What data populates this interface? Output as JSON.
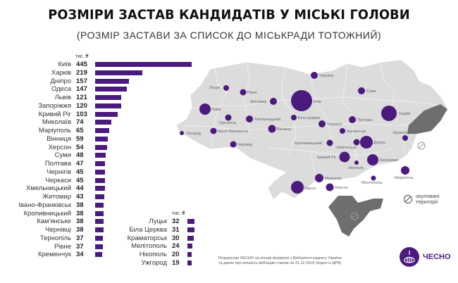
{
  "header": {
    "title": "РОЗМІРИ ЗАСТАВ КАНДИДАТІВ У МІСЬКІ ГОЛОВИ",
    "subtitle": "(РОЗМІР ЗАСТАВИ ЗА СПИСОК ДО МІСЬКРАДИ ТОТОЖНИЙ)"
  },
  "chart": {
    "unit_label": "тис. ₴",
    "bar_color": "#4b1a7e",
    "column1": [
      {
        "city": "Київ",
        "value": "445"
      },
      {
        "city": "Харків",
        "value": "219"
      },
      {
        "city": "Дніпро",
        "value": "157"
      },
      {
        "city": "Одеса",
        "value": "147"
      },
      {
        "city": "Львів",
        "value": "121"
      },
      {
        "city": "Запоріжжя",
        "value": "120"
      },
      {
        "city": "Кривий Ріг",
        "value": "103"
      },
      {
        "city": "Миколаїв",
        "value": "74"
      },
      {
        "city": "Маріуполь",
        "value": "65"
      },
      {
        "city": "Вінниця",
        "value": "59"
      },
      {
        "city": "Херсон",
        "value": "54"
      },
      {
        "city": "Суми",
        "value": "48"
      },
      {
        "city": "Полтава",
        "value": "47"
      },
      {
        "city": "Чернігів",
        "value": "45"
      },
      {
        "city": "Черкаси",
        "value": "45"
      },
      {
        "city": "Хмельницький",
        "value": "44"
      },
      {
        "city": "Житомир",
        "value": "43"
      },
      {
        "city": "Івано-Франківськ",
        "value": "38"
      },
      {
        "city": "Кропивницький",
        "value": "38"
      },
      {
        "city": "Кам'янське",
        "value": "38"
      },
      {
        "city": "Чернівці",
        "value": "38"
      },
      {
        "city": "Тернопіль",
        "value": "37"
      },
      {
        "city": "Рівне",
        "value": "37"
      },
      {
        "city": "Кременчук",
        "value": "34"
      }
    ],
    "column2": [
      {
        "city": "Луцьк",
        "value": "32"
      },
      {
        "city": "Біла Церква",
        "value": "31"
      },
      {
        "city": "Краматорськ",
        "value": "30"
      },
      {
        "city": "Мелітополь",
        "value": "24"
      },
      {
        "city": "Нікополь",
        "value": "20"
      },
      {
        "city": "Ужгород",
        "value": "19"
      }
    ]
  },
  "chart_data": {
    "type": "bar",
    "orientation": "horizontal",
    "title": "РОЗМІРИ ЗАСТАВ КАНДИДАТІВ У МІСЬКІ ГОЛОВИ",
    "subtitle": "(РОЗМІР ЗАСТАВИ ЗА СПИСОК ДО МІСЬКРАДИ ТОТОЖНИЙ)",
    "xlabel": "тис. ₴",
    "ylabel": "",
    "categories": [
      "Київ",
      "Харків",
      "Дніпро",
      "Одеса",
      "Львів",
      "Запоріжжя",
      "Кривий Ріг",
      "Миколаїв",
      "Маріуполь",
      "Вінниця",
      "Херсон",
      "Суми",
      "Полтава",
      "Чернігів",
      "Черкаси",
      "Хмельницький",
      "Житомир",
      "Івано-Франківськ",
      "Кропивницький",
      "Кам'янське",
      "Чернівці",
      "Тернопіль",
      "Рівне",
      "Кременчук",
      "Луцьк",
      "Біла Церква",
      "Краматорськ",
      "Мелітополь",
      "Нікополь",
      "Ужгород"
    ],
    "values": [
      445,
      219,
      157,
      147,
      121,
      120,
      103,
      74,
      65,
      59,
      54,
      48,
      47,
      45,
      45,
      44,
      43,
      38,
      38,
      38,
      38,
      37,
      37,
      34,
      32,
      31,
      30,
      24,
      20,
      19
    ],
    "grid": false,
    "legend": "none"
  },
  "map": {
    "legend_occupied": [
      "окуповані",
      "території"
    ],
    "labels": {
      "kyiv": "Київ",
      "kharkiv": "Харків",
      "dnipro": "Дніпро",
      "odesa": "Одеса",
      "lviv": "Львів",
      "zaporizhzhia": "Запоріжжя",
      "kryvyi_rih": "Кривий Ріг",
      "mykolaiv": "Миколаїв",
      "mariupol": "Маріуполь",
      "vinnytsia": "Вінниця",
      "kherson": "Херсон",
      "sumy": "Суми",
      "poltava": "Полтава",
      "chernihiv": "Чернігів",
      "cherkasy": "Черкаси",
      "khmelnytskyi": "Хмельницький",
      "zhytomyr": "Житомир",
      "ivano_frankivsk": "Івано-Франківськ",
      "kropyvnytskyi": "Кропивницький",
      "kamianske": "Кам'янське",
      "chernivtsi": "Чернівці",
      "ternopil": "Тернопіль",
      "rivne": "Рівне",
      "kremenchuk": "Кременчук",
      "lutsk": "Луцьк",
      "bila_tserkva": "Біла Церква",
      "kramatorsk": "Краматорськ",
      "melitopol": "Мелітополь",
      "nikopol": "Нікополь",
      "uzhhorod": "Ужгород"
    }
  },
  "footer": {
    "note_line1": "Розрахунки ЧЕСНО на основі формули з Виборчого кодексу України",
    "note_line2": "та даних про кількість виборців станом на 31.12.2019 (згідно із ДРВ).",
    "brand": "ЧЕСНО"
  }
}
